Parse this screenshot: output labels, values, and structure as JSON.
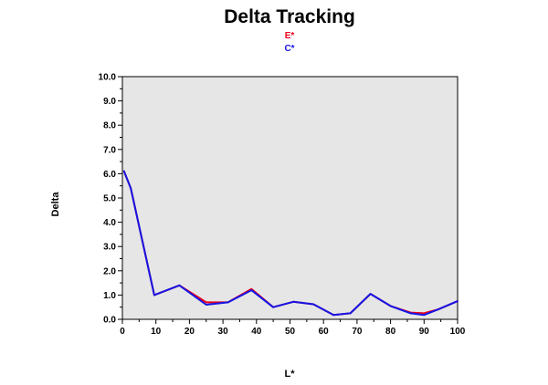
{
  "chart_data": {
    "type": "line",
    "title": "Delta Tracking",
    "xlabel": "L*",
    "ylabel": "Delta",
    "xlim": [
      0,
      100
    ],
    "ylim": [
      0,
      10
    ],
    "x_ticks": [
      "0",
      "10",
      "20",
      "30",
      "40",
      "50",
      "60",
      "70",
      "80",
      "90",
      "100"
    ],
    "y_ticks": [
      "0.0",
      "1.0",
      "2.0",
      "3.0",
      "4.0",
      "5.0",
      "6.0",
      "7.0",
      "8.0",
      "9.0",
      "10.0"
    ],
    "legend_position": "top-center",
    "plot_background": "#e6e6e6",
    "series": [
      {
        "name": "E*",
        "color": "#e8001c",
        "points": [
          [
            0.5,
            6.1
          ],
          [
            2.5,
            5.4
          ],
          [
            9.5,
            1.0
          ],
          [
            17,
            1.4
          ],
          [
            25,
            0.7
          ],
          [
            31.5,
            0.7
          ],
          [
            38.5,
            1.25
          ],
          [
            45,
            0.5
          ],
          [
            51,
            0.72
          ],
          [
            57,
            0.62
          ],
          [
            63,
            0.18
          ],
          [
            68,
            0.25
          ],
          [
            74,
            1.05
          ],
          [
            80,
            0.55
          ],
          [
            86,
            0.28
          ],
          [
            90,
            0.25
          ],
          [
            94,
            0.4
          ],
          [
            100,
            0.75
          ]
        ]
      },
      {
        "name": "C*",
        "color": "#1414e6",
        "points": [
          [
            0.5,
            6.1
          ],
          [
            2.5,
            5.4
          ],
          [
            9.5,
            1.0
          ],
          [
            17,
            1.4
          ],
          [
            25,
            0.6
          ],
          [
            31.5,
            0.7
          ],
          [
            38.5,
            1.2
          ],
          [
            45,
            0.5
          ],
          [
            51,
            0.72
          ],
          [
            57,
            0.62
          ],
          [
            63,
            0.18
          ],
          [
            68,
            0.25
          ],
          [
            74,
            1.05
          ],
          [
            80,
            0.55
          ],
          [
            86,
            0.25
          ],
          [
            90,
            0.18
          ],
          [
            94,
            0.4
          ],
          [
            100,
            0.75
          ]
        ]
      }
    ]
  }
}
